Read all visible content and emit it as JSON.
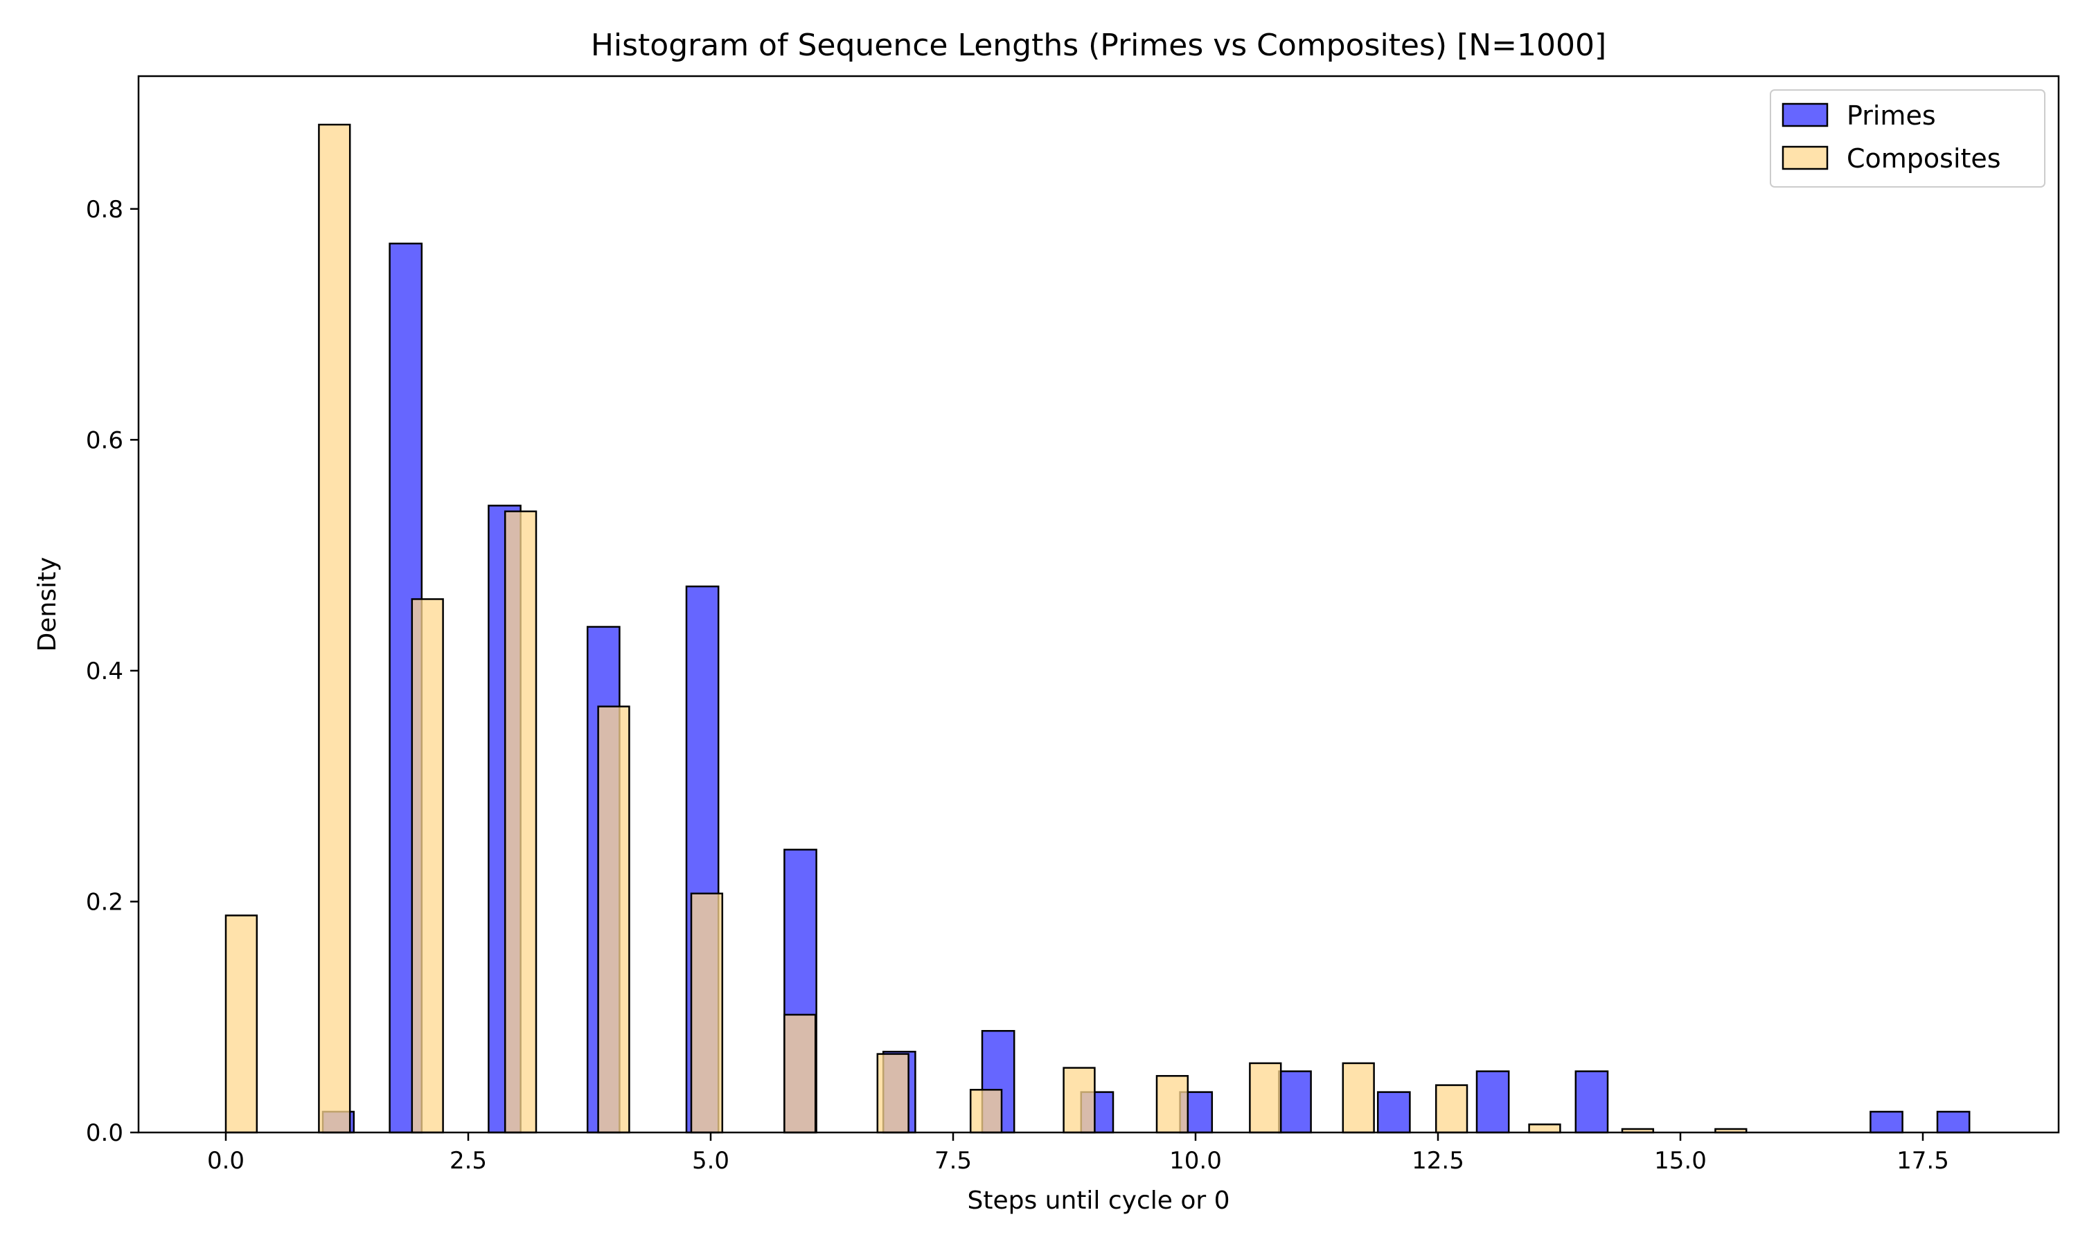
{
  "chart_data": {
    "type": "bar",
    "title": "Histogram of Sequence Lengths (Primes vs Composites) [N=1000]",
    "xlabel": "Steps until cycle or 0",
    "ylabel": "Density",
    "xlim": [
      -0.9,
      18.9
    ],
    "ylim": [
      0,
      0.915
    ],
    "xticks": [
      0.0,
      2.5,
      5.0,
      7.5,
      10.0,
      12.5,
      15.0,
      17.5
    ],
    "xtick_labels": [
      "0.0",
      "2.5",
      "5.0",
      "7.5",
      "10.0",
      "12.5",
      "15.0",
      "17.5"
    ],
    "yticks": [
      0.0,
      0.2,
      0.4,
      0.6,
      0.8
    ],
    "ytick_labels": [
      "0.0",
      "0.2",
      "0.4",
      "0.6",
      "0.8"
    ],
    "grid": false,
    "legend_position": "top-right",
    "series": [
      {
        "name": "Primes",
        "color": "#6666ff",
        "bars": [
          {
            "x0": 1.0,
            "x1": 1.32,
            "value": 0.018
          },
          {
            "x0": 1.69,
            "x1": 2.02,
            "value": 0.77
          },
          {
            "x0": 2.71,
            "x1": 3.04,
            "value": 0.543
          },
          {
            "x0": 3.73,
            "x1": 4.06,
            "value": 0.438
          },
          {
            "x0": 4.75,
            "x1": 5.08,
            "value": 0.473
          },
          {
            "x0": 5.76,
            "x1": 6.09,
            "value": 0.245
          },
          {
            "x0": 6.78,
            "x1": 7.11,
            "value": 0.07
          },
          {
            "x0": 7.8,
            "x1": 8.13,
            "value": 0.088
          },
          {
            "x0": 8.82,
            "x1": 9.15,
            "value": 0.035
          },
          {
            "x0": 9.84,
            "x1": 10.17,
            "value": 0.035
          },
          {
            "x0": 10.86,
            "x1": 11.19,
            "value": 0.053
          },
          {
            "x0": 11.88,
            "x1": 12.21,
            "value": 0.035
          },
          {
            "x0": 12.9,
            "x1": 13.23,
            "value": 0.053
          },
          {
            "x0": 13.92,
            "x1": 14.25,
            "value": 0.053
          },
          {
            "x0": 16.96,
            "x1": 17.29,
            "value": 0.018
          },
          {
            "x0": 17.65,
            "x1": 17.98,
            "value": 0.018
          }
        ]
      },
      {
        "name": "Composites",
        "color": "#ffd88f",
        "bars": [
          {
            "x0": 0.0,
            "x1": 0.32,
            "value": 0.188
          },
          {
            "x0": 0.96,
            "x1": 1.28,
            "value": 0.873
          },
          {
            "x0": 1.92,
            "x1": 2.24,
            "value": 0.462
          },
          {
            "x0": 2.88,
            "x1": 3.2,
            "value": 0.538
          },
          {
            "x0": 3.84,
            "x1": 4.16,
            "value": 0.369
          },
          {
            "x0": 4.8,
            "x1": 5.12,
            "value": 0.207
          },
          {
            "x0": 5.76,
            "x1": 6.08,
            "value": 0.102
          },
          {
            "x0": 6.72,
            "x1": 7.04,
            "value": 0.068
          },
          {
            "x0": 7.68,
            "x1": 8.0,
            "value": 0.037
          },
          {
            "x0": 8.64,
            "x1": 8.96,
            "value": 0.056
          },
          {
            "x0": 9.6,
            "x1": 9.92,
            "value": 0.049
          },
          {
            "x0": 10.56,
            "x1": 10.88,
            "value": 0.06
          },
          {
            "x0": 11.52,
            "x1": 11.84,
            "value": 0.06
          },
          {
            "x0": 12.48,
            "x1": 12.8,
            "value": 0.041
          },
          {
            "x0": 13.44,
            "x1": 13.76,
            "value": 0.007
          },
          {
            "x0": 14.4,
            "x1": 14.72,
            "value": 0.003
          },
          {
            "x0": 15.36,
            "x1": 15.68,
            "value": 0.003
          }
        ]
      }
    ]
  }
}
